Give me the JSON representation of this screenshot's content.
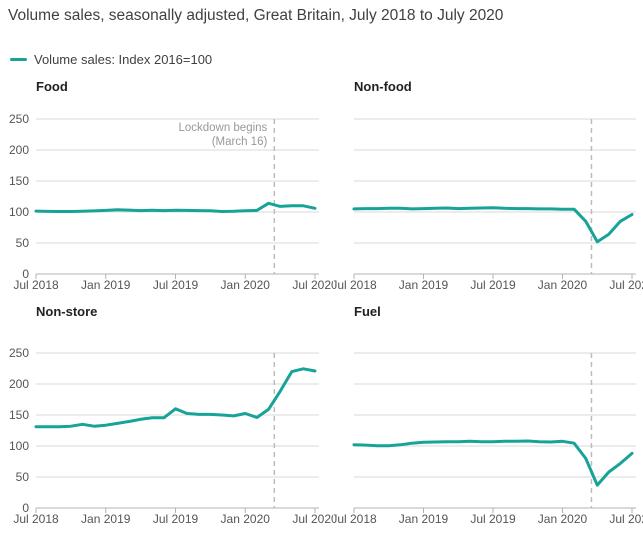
{
  "title": "Volume sales, seasonally adjusted, Great Britain, July 2018 to July 2020",
  "legend": {
    "label": "Volume sales: Index 2016=100"
  },
  "annotation": {
    "line1": "Lockdown begins",
    "line2": "(March 16)"
  },
  "colors": {
    "line": "#17a398",
    "grid": "#d9d9d9",
    "axis": "#b3b3b3",
    "dashed_line": "#bcbcbc",
    "tick_label": "#555555",
    "annotation_text": "#999999",
    "title_text": "#414042",
    "panel_title_text": "#222222"
  },
  "chart_data": {
    "type": "line",
    "unit": "Index 2016=100",
    "x_range": "Monthly, Jul 2018 to Jul 2020 (25 points)",
    "x_tick_labels": [
      "Jul 2018",
      "Jan 2019",
      "Jul 2019",
      "Jan 2020",
      "Jul 2020"
    ],
    "x_tick_month_indices": [
      0,
      6,
      12,
      18,
      24
    ],
    "ylim": [
      0,
      250
    ],
    "y_ticks": [
      0,
      50,
      100,
      150,
      200,
      250
    ],
    "lockdown_month_index": 20.5,
    "panels": [
      {
        "title": "Food",
        "show_y_labels": true,
        "show_annotation": true,
        "values": [
          101.5,
          101,
          100.8,
          100.8,
          101.2,
          101.8,
          102.5,
          103.5,
          103,
          102.2,
          102.8,
          102.2,
          102.8,
          102.5,
          102.2,
          102,
          100.8,
          101.2,
          102,
          102.5,
          114,
          109,
          110,
          110,
          106
        ]
      },
      {
        "title": "Non-food",
        "show_y_labels": false,
        "show_annotation": false,
        "values": [
          105,
          105.5,
          105.5,
          106,
          106,
          105,
          105.5,
          106,
          106.5,
          105.5,
          106,
          106.5,
          107,
          106,
          105.5,
          105.5,
          105,
          105,
          104.5,
          104.5,
          85,
          52,
          64,
          85,
          96
        ]
      },
      {
        "title": "Non-store",
        "show_y_labels": true,
        "show_annotation": false,
        "values": [
          131,
          131,
          131,
          132,
          135,
          132,
          133.5,
          136.5,
          139.5,
          143,
          145.5,
          145.5,
          160,
          152.5,
          151,
          151,
          150,
          148.5,
          152.5,
          146,
          159,
          188,
          220,
          224.5,
          221
        ]
      },
      {
        "title": "Fuel",
        "show_y_labels": false,
        "show_annotation": false,
        "values": [
          102,
          101.5,
          100.5,
          100.5,
          102,
          104.5,
          106,
          106.5,
          107,
          107,
          107.5,
          107,
          107,
          107.5,
          107.5,
          108,
          107,
          106.5,
          107.5,
          104.5,
          80,
          37,
          58,
          72,
          88
        ]
      }
    ]
  }
}
